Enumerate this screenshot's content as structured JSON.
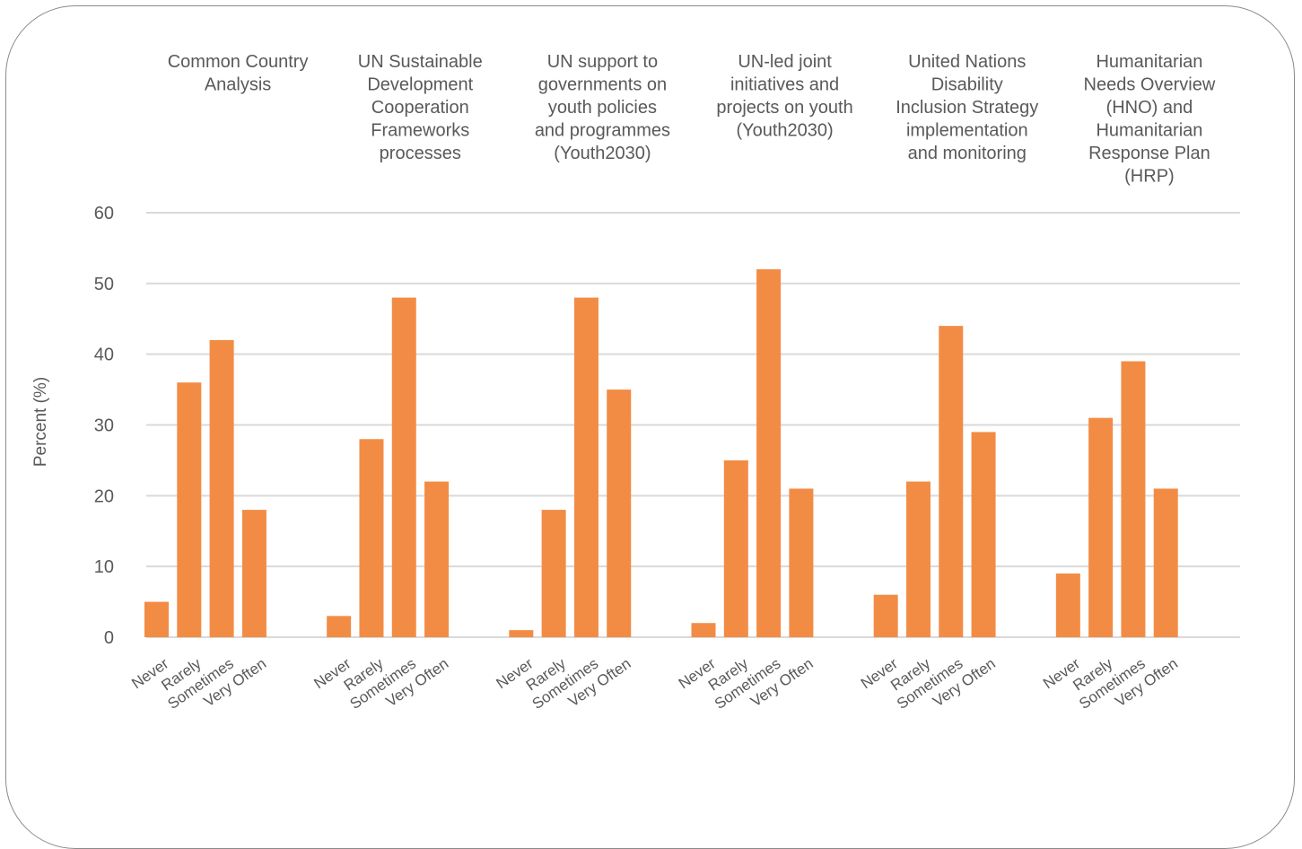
{
  "chart_data": {
    "type": "bar",
    "ylabel": "Percent (%)",
    "ylim": [
      0,
      60
    ],
    "yticks": [
      0,
      10,
      20,
      30,
      40,
      50,
      60
    ],
    "grid": true,
    "bar_color": "#F28C45",
    "categories": [
      "Never",
      "Rarely",
      "Sometimes",
      "Very Often"
    ],
    "panels": [
      {
        "title": [
          "Common Country",
          "Analysis"
        ],
        "values": [
          5,
          36,
          42,
          18
        ]
      },
      {
        "title": [
          "UN Sustainable",
          "Development",
          "Cooperation",
          "Frameworks",
          "processes"
        ],
        "values": [
          3,
          28,
          48,
          22
        ]
      },
      {
        "title": [
          "UN support to",
          "governments on",
          "youth policies",
          "and programmes",
          "(Youth2030)"
        ],
        "values": [
          1,
          18,
          48,
          35
        ]
      },
      {
        "title": [
          "UN-led joint",
          "initiatives and",
          "projects on youth",
          "(Youth2030)"
        ],
        "values": [
          2,
          25,
          52,
          21
        ]
      },
      {
        "title": [
          "United Nations",
          "Disability",
          "Inclusion Strategy",
          "implementation",
          "and monitoring"
        ],
        "values": [
          6,
          22,
          44,
          29
        ]
      },
      {
        "title": [
          "Humanitarian",
          "Needs Overview",
          "(HNO) and",
          "Humanitarian",
          "Response Plan",
          "(HRP)"
        ],
        "values": [
          9,
          31,
          39,
          21
        ]
      }
    ]
  }
}
